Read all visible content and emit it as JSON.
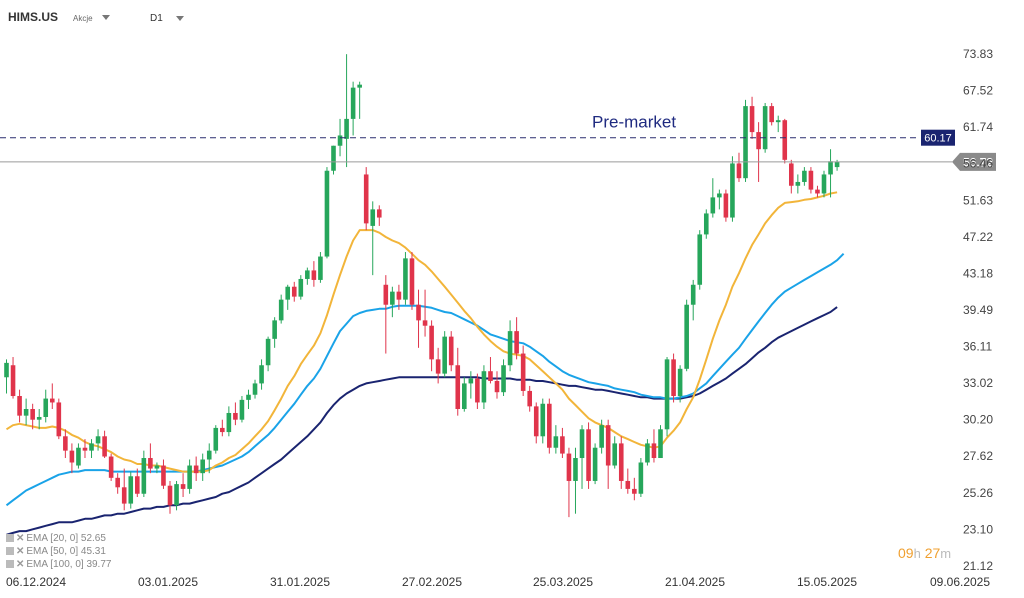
{
  "header": {
    "symbol": "HIMS.US",
    "asset_type": "Akcje",
    "timeframe": "D1"
  },
  "timer": {
    "hours": "09",
    "hours_unit": "h",
    "minutes": "27",
    "minutes_unit": "m"
  },
  "legend": [
    {
      "label": "EMA",
      "params": "[20, 0]",
      "value": "52.65",
      "color": "#f2b53a"
    },
    {
      "label": "EMA",
      "params": "[50, 0]",
      "value": "45.31",
      "color": "#1aa3e8"
    },
    {
      "label": "EMA",
      "params": "[100, 0]",
      "value": "39.77",
      "color": "#1a2470"
    }
  ],
  "chart_data": {
    "type": "candlestick",
    "y_axis_ticks": [
      "73.83",
      "67.52",
      "61.74",
      "56.46",
      "51.63",
      "47.22",
      "43.18",
      "39.49",
      "36.11",
      "33.02",
      "30.20",
      "27.62",
      "25.26",
      "23.10",
      "21.12"
    ],
    "x_axis_ticks": [
      "06.12.2024",
      "03.01.2025",
      "31.01.2025",
      "27.02.2025",
      "25.03.2025",
      "21.04.2025",
      "15.05.2025",
      "09.06.2025"
    ],
    "ylim": [
      21.12,
      73.83
    ],
    "last_price": 56.72,
    "last_price_label": "56.72",
    "premarket_price": 60.17,
    "premarket_label": "60.17",
    "annotation": "Pre-market",
    "colors": {
      "up": "#26a65b",
      "down": "#e0344b",
      "ema20": "#f2b53a",
      "ema50": "#1aa3e8",
      "ema100": "#1a2470"
    },
    "candles": [
      [
        33.5,
        35.0,
        32.2,
        34.7
      ],
      [
        34.5,
        35.2,
        31.8,
        32.0
      ],
      [
        32.0,
        32.5,
        30.0,
        30.5
      ],
      [
        30.5,
        31.8,
        29.8,
        31.0
      ],
      [
        31.0,
        31.4,
        29.5,
        30.2
      ],
      [
        30.2,
        31.0,
        29.5,
        30.4
      ],
      [
        30.4,
        32.5,
        30.0,
        31.8
      ],
      [
        31.8,
        33.0,
        31.0,
        31.5
      ],
      [
        31.5,
        31.8,
        28.8,
        29.0
      ],
      [
        29.0,
        29.5,
        27.5,
        28.0
      ],
      [
        28.0,
        28.5,
        26.5,
        27.2
      ],
      [
        27.0,
        28.5,
        26.8,
        28.2
      ],
      [
        28.2,
        28.8,
        27.5,
        28.0
      ],
      [
        28.0,
        28.8,
        27.5,
        28.5
      ],
      [
        28.5,
        29.5,
        28.0,
        29.0
      ],
      [
        29.0,
        29.4,
        27.5,
        27.6
      ],
      [
        27.6,
        27.8,
        26.0,
        26.2
      ],
      [
        26.2,
        26.5,
        25.2,
        25.6
      ],
      [
        25.6,
        26.8,
        24.2,
        24.6
      ],
      [
        24.6,
        26.6,
        24.3,
        26.3
      ],
      [
        26.3,
        26.8,
        25.0,
        25.2
      ],
      [
        25.2,
        28.0,
        25.0,
        27.5
      ],
      [
        27.5,
        28.5,
        26.5,
        26.8
      ],
      [
        26.8,
        27.2,
        26.5,
        27.0
      ],
      [
        27.0,
        27.4,
        25.5,
        25.7
      ],
      [
        25.7,
        26.0,
        24.0,
        24.5
      ],
      [
        24.5,
        26.0,
        24.2,
        25.8
      ],
      [
        25.8,
        26.5,
        25.0,
        25.5
      ],
      [
        25.5,
        27.4,
        25.2,
        27.0
      ],
      [
        27.0,
        27.6,
        26.0,
        26.5
      ],
      [
        26.5,
        27.8,
        26.0,
        27.4
      ],
      [
        27.4,
        28.5,
        26.5,
        28.0
      ],
      [
        28.0,
        29.8,
        27.8,
        29.6
      ],
      [
        29.6,
        30.2,
        29.0,
        29.3
      ],
      [
        29.3,
        31.2,
        29.0,
        30.7
      ],
      [
        30.7,
        31.5,
        29.8,
        30.2
      ],
      [
        30.2,
        32.0,
        30.0,
        31.7
      ],
      [
        31.7,
        32.5,
        31.0,
        32.1
      ],
      [
        32.1,
        33.3,
        31.8,
        33.0
      ],
      [
        33.0,
        35.0,
        32.5,
        34.5
      ],
      [
        34.5,
        37.0,
        34.0,
        36.8
      ],
      [
        36.8,
        38.8,
        36.0,
        38.5
      ],
      [
        38.5,
        41.0,
        38.2,
        40.5
      ],
      [
        40.5,
        42.0,
        39.5,
        41.8
      ],
      [
        41.8,
        42.3,
        40.3,
        40.8
      ],
      [
        40.8,
        43.0,
        40.5,
        42.6
      ],
      [
        42.6,
        43.8,
        42.0,
        43.5
      ],
      [
        43.5,
        44.5,
        41.8,
        42.5
      ],
      [
        42.5,
        45.5,
        42.2,
        45.0
      ],
      [
        45.0,
        56.0,
        44.8,
        55.5
      ],
      [
        55.5,
        59.0,
        55.0,
        59.0
      ],
      [
        59.0,
        63.0,
        57.5,
        60.5
      ],
      [
        60.0,
        73.8,
        56.0,
        63.0
      ],
      [
        63.0,
        69.0,
        60.5,
        68.0
      ],
      [
        68.0,
        69.0,
        63.0,
        68.5
      ],
      [
        55.0,
        56.0,
        48.0,
        48.8
      ],
      [
        48.5,
        51.5,
        43.0,
        50.5
      ],
      [
        50.5,
        51.0,
        48.5,
        49.5
      ],
      [
        42.0,
        43.0,
        35.5,
        40.0
      ],
      [
        40.0,
        41.8,
        38.8,
        41.3
      ],
      [
        41.3,
        42.0,
        39.5,
        40.5
      ],
      [
        40.5,
        45.5,
        40.0,
        44.8
      ],
      [
        44.8,
        45.5,
        39.5,
        40.0
      ],
      [
        40.0,
        41.5,
        36.0,
        38.5
      ],
      [
        38.5,
        41.5,
        37.0,
        38.0
      ],
      [
        38.0,
        38.5,
        34.0,
        35.0
      ],
      [
        35.0,
        36.0,
        33.0,
        33.8
      ],
      [
        33.8,
        37.5,
        33.5,
        37.0
      ],
      [
        37.0,
        37.5,
        34.0,
        34.5
      ],
      [
        34.5,
        36.0,
        30.5,
        31.0
      ],
      [
        31.0,
        33.5,
        30.8,
        33.0
      ],
      [
        33.0,
        34.0,
        31.8,
        33.4
      ],
      [
        33.4,
        33.8,
        31.0,
        31.5
      ],
      [
        31.5,
        34.5,
        31.0,
        34.0
      ],
      [
        34.0,
        35.2,
        33.0,
        33.2
      ],
      [
        33.2,
        34.0,
        31.8,
        32.3
      ],
      [
        32.3,
        35.0,
        32.0,
        34.5
      ],
      [
        34.5,
        38.5,
        34.0,
        37.5
      ],
      [
        37.5,
        38.8,
        35.0,
        35.5
      ],
      [
        35.5,
        36.2,
        32.0,
        32.4
      ],
      [
        32.4,
        32.8,
        30.8,
        31.2
      ],
      [
        31.2,
        31.5,
        28.5,
        29.0
      ],
      [
        29.0,
        31.8,
        28.5,
        31.4
      ],
      [
        31.4,
        31.8,
        27.8,
        28.2
      ],
      [
        28.2,
        29.8,
        27.8,
        29.0
      ],
      [
        29.0,
        29.6,
        27.5,
        27.8
      ],
      [
        27.8,
        28.2,
        23.8,
        26.0
      ],
      [
        26.0,
        28.2,
        24.0,
        27.5
      ],
      [
        27.5,
        29.8,
        25.5,
        29.5
      ],
      [
        29.5,
        30.0,
        25.5,
        26.0
      ],
      [
        26.0,
        28.5,
        25.8,
        28.2
      ],
      [
        28.2,
        30.2,
        27.8,
        29.8
      ],
      [
        29.8,
        30.2,
        25.5,
        27.0
      ],
      [
        27.0,
        29.0,
        26.8,
        28.5
      ],
      [
        28.5,
        29.0,
        25.5,
        26.0
      ],
      [
        26.0,
        26.8,
        25.2,
        25.5
      ],
      [
        25.5,
        26.2,
        24.8,
        25.2
      ],
      [
        25.2,
        27.5,
        25.0,
        27.2
      ],
      [
        27.2,
        28.8,
        27.0,
        28.5
      ],
      [
        28.5,
        29.5,
        27.2,
        27.5
      ],
      [
        27.5,
        29.8,
        27.5,
        29.5
      ],
      [
        29.5,
        35.2,
        29.0,
        35.0
      ],
      [
        35.0,
        35.5,
        31.5,
        32.0
      ],
      [
        32.0,
        34.5,
        31.5,
        34.2
      ],
      [
        34.2,
        40.5,
        34.0,
        40.0
      ],
      [
        40.0,
        42.5,
        38.5,
        42.0
      ],
      [
        42.0,
        48.0,
        41.5,
        47.5
      ],
      [
        47.5,
        50.5,
        47.0,
        50.0
      ],
      [
        50.0,
        54.5,
        49.5,
        52.0
      ],
      [
        52.0,
        53.0,
        50.5,
        52.5
      ],
      [
        52.5,
        53.0,
        49.0,
        49.5
      ],
      [
        49.5,
        57.5,
        49.0,
        56.5
      ],
      [
        56.5,
        58.0,
        54.0,
        54.5
      ],
      [
        54.5,
        66.0,
        54.0,
        65.0
      ],
      [
        65.0,
        66.5,
        60.0,
        61.0
      ],
      [
        61.0,
        62.5,
        54.0,
        58.5
      ],
      [
        58.5,
        65.5,
        58.0,
        65.0
      ],
      [
        65.0,
        65.5,
        62.0,
        62.5
      ],
      [
        62.5,
        63.5,
        61.0,
        62.8
      ],
      [
        62.8,
        63.0,
        56.5,
        57.0
      ],
      [
        56.5,
        57.0,
        52.5,
        53.5
      ],
      [
        53.5,
        55.0,
        52.5,
        54.0
      ],
      [
        54.0,
        56.0,
        53.5,
        55.5
      ],
      [
        55.5,
        56.0,
        52.5,
        53.0
      ],
      [
        53.0,
        53.5,
        52.0,
        52.5
      ],
      [
        52.5,
        55.5,
        52.0,
        55.0
      ],
      [
        55.0,
        58.5,
        52.0,
        56.8
      ],
      [
        56.0,
        57.0,
        55.5,
        56.7
      ]
    ],
    "ema20": [
      29.5,
      29.8,
      29.9,
      29.8,
      29.7,
      29.6,
      29.6,
      29.7,
      29.6,
      29.4,
      29.1,
      28.9,
      28.6,
      28.4,
      28.3,
      28.1,
      27.9,
      27.6,
      27.4,
      27.3,
      27.1,
      27.1,
      27.0,
      27.0,
      26.9,
      26.8,
      26.7,
      26.6,
      26.6,
      26.6,
      26.6,
      26.7,
      27.0,
      27.2,
      27.5,
      27.7,
      28.1,
      28.5,
      29.0,
      29.5,
      30.1,
      30.9,
      31.8,
      32.8,
      33.6,
      34.6,
      35.4,
      36.2,
      37.3,
      39.0,
      41.0,
      43.0,
      45.0,
      46.8,
      48.0,
      48.0,
      48.0,
      47.7,
      47.2,
      46.8,
      46.5,
      46.0,
      45.3,
      44.6,
      44.1,
      43.4,
      42.6,
      41.8,
      41.0,
      40.2,
      39.4,
      38.7,
      37.9,
      37.2,
      36.6,
      36.1,
      35.7,
      35.5,
      35.4,
      35.3,
      35.0,
      34.5,
      34.0,
      33.5,
      33.0,
      32.5,
      31.8,
      31.3,
      30.8,
      30.3,
      30.0,
      29.8,
      29.6,
      29.3,
      29.0,
      28.8,
      28.6,
      28.4,
      28.3,
      28.2,
      28.3,
      28.9,
      29.4,
      30.0,
      31.0,
      31.9,
      33.3,
      35.0,
      36.8,
      38.5,
      40.0,
      41.8,
      43.2,
      44.8,
      46.3,
      47.5,
      48.8,
      49.8,
      50.7,
      51.3,
      51.4,
      51.5,
      51.7,
      51.8,
      52.0,
      52.2,
      52.5,
      52.65
    ],
    "ema50": [
      24.5,
      24.8,
      25.1,
      25.4,
      25.6,
      25.8,
      26.0,
      26.2,
      26.4,
      26.5,
      26.6,
      26.6,
      26.7,
      26.7,
      26.7,
      26.7,
      26.6,
      26.6,
      26.6,
      26.6,
      26.6,
      26.6,
      26.6,
      26.6,
      26.6,
      26.6,
      26.6,
      26.6,
      26.6,
      26.6,
      26.7,
      26.8,
      26.9,
      27.0,
      27.2,
      27.4,
      27.6,
      27.9,
      28.3,
      28.7,
      29.1,
      29.6,
      30.2,
      30.8,
      31.4,
      32.1,
      32.8,
      33.4,
      34.2,
      35.3,
      36.4,
      37.5,
      38.2,
      38.9,
      39.2,
      39.4,
      39.5,
      39.6,
      39.6,
      39.8,
      39.9,
      39.9,
      39.9,
      39.9,
      39.8,
      39.7,
      39.5,
      39.3,
      39.2,
      38.9,
      38.6,
      38.3,
      38.0,
      37.6,
      37.2,
      37.0,
      36.8,
      36.6,
      36.5,
      36.4,
      36.1,
      35.7,
      35.3,
      34.8,
      34.4,
      34.0,
      33.7,
      33.5,
      33.3,
      33.1,
      33.0,
      32.9,
      32.8,
      32.6,
      32.5,
      32.4,
      32.3,
      32.1,
      32.0,
      31.9,
      31.9,
      31.8,
      31.8,
      31.9,
      32.0,
      32.2,
      32.6,
      33.0,
      33.6,
      34.2,
      34.8,
      35.4,
      36.0,
      36.8,
      37.6,
      38.4,
      39.2,
      40.0,
      40.7,
      41.3,
      41.7,
      42.1,
      42.5,
      42.9,
      43.3,
      43.7,
      44.1,
      44.6,
      45.31
    ],
    "ema100": [
      22.8,
      22.9,
      23.0,
      23.0,
      23.1,
      23.2,
      23.3,
      23.4,
      23.5,
      23.5,
      23.5,
      23.6,
      23.7,
      23.7,
      23.8,
      23.9,
      23.9,
      24.0,
      24.0,
      24.1,
      24.2,
      24.3,
      24.3,
      24.4,
      24.4,
      24.5,
      24.5,
      24.6,
      24.6,
      24.7,
      24.8,
      24.9,
      25.0,
      25.2,
      25.3,
      25.5,
      25.7,
      25.9,
      26.2,
      26.5,
      26.8,
      27.1,
      27.4,
      27.8,
      28.2,
      28.6,
      29.0,
      29.5,
      30.0,
      30.7,
      31.3,
      31.8,
      32.2,
      32.5,
      32.8,
      33.0,
      33.1,
      33.2,
      33.3,
      33.4,
      33.5,
      33.5,
      33.5,
      33.5,
      33.5,
      33.5,
      33.5,
      33.5,
      33.5,
      33.5,
      33.5,
      33.5,
      33.5,
      33.4,
      33.4,
      33.4,
      33.4,
      33.4,
      33.3,
      33.3,
      33.3,
      33.2,
      33.2,
      33.1,
      33.0,
      32.9,
      32.8,
      32.8,
      32.7,
      32.6,
      32.5,
      32.5,
      32.4,
      32.3,
      32.2,
      32.1,
      32.0,
      31.9,
      31.9,
      31.8,
      31.8,
      31.8,
      31.8,
      31.8,
      31.9,
      32.0,
      32.2,
      32.5,
      32.8,
      33.1,
      33.4,
      33.8,
      34.2,
      34.6,
      35.1,
      35.6,
      36.0,
      36.5,
      36.9,
      37.2,
      37.5,
      37.8,
      38.1,
      38.4,
      38.7,
      39.0,
      39.3,
      39.77
    ]
  }
}
